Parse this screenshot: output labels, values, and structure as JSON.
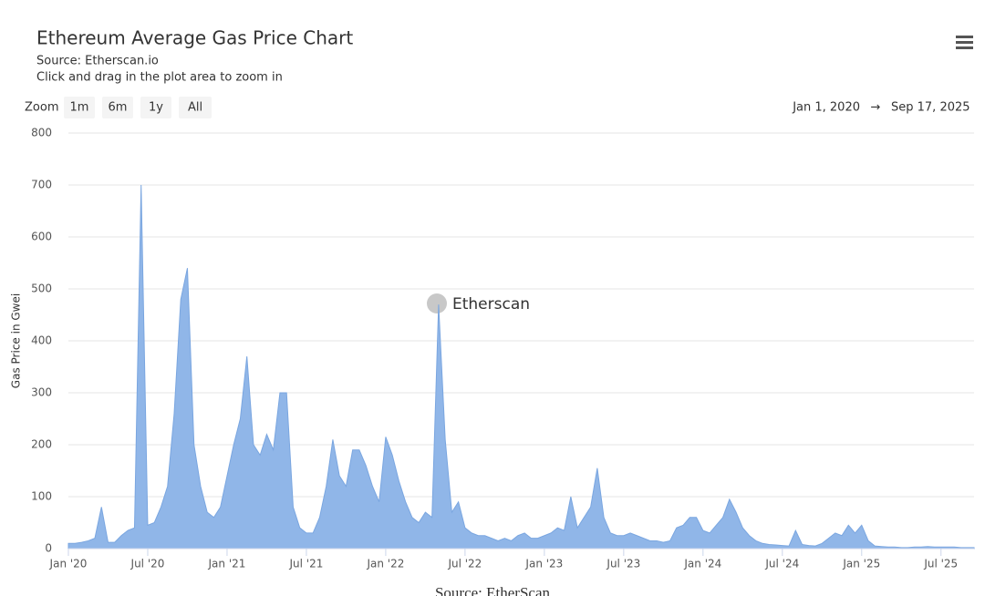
{
  "chart_data": {
    "type": "area",
    "title": "Ethereum Average Gas Price Chart",
    "subtitle": [
      "Source: Etherscan.io",
      "Click and drag in the plot area to zoom in"
    ],
    "range_selector": {
      "label": "Zoom",
      "buttons": [
        "1m",
        "6m",
        "1y",
        "All"
      ]
    },
    "date_range": {
      "from": "Jan 1, 2020",
      "arrow": "→",
      "to": "Sep 17, 2025"
    },
    "y_label": "Gas Price in Gwei",
    "watermark": "Etherscan",
    "caption": "Source: EtherScan",
    "color": "#90b6e8",
    "categories": [
      "Jan '20",
      null,
      null,
      null,
      null,
      null,
      null,
      null,
      null,
      null,
      null,
      null,
      "Jul '20",
      null,
      null,
      null,
      null,
      null,
      null,
      null,
      null,
      null,
      null,
      null,
      "Jan '21",
      null,
      null,
      null,
      null,
      null,
      null,
      null,
      null,
      null,
      null,
      null,
      "Jul '21",
      null,
      null,
      null,
      null,
      null,
      null,
      null,
      null,
      null,
      null,
      null,
      "Jan '22",
      null,
      null,
      null,
      null,
      null,
      null,
      null,
      null,
      null,
      null,
      null,
      "Jul '22",
      null,
      null,
      null,
      null,
      null,
      null,
      null,
      null,
      null,
      null,
      null,
      "Jan '23",
      null,
      null,
      null,
      null,
      null,
      null,
      null,
      null,
      null,
      null,
      null,
      "Jul '23",
      null,
      null,
      null,
      null,
      null,
      null,
      null,
      null,
      null,
      null,
      null,
      "Jan '24",
      null,
      null,
      null,
      null,
      null,
      null,
      null,
      null,
      null,
      null,
      null,
      "Jul '24",
      null,
      null,
      null,
      null,
      null,
      null,
      null,
      null,
      null,
      null,
      null,
      "Jan '25",
      null,
      null,
      null,
      null,
      null,
      null,
      null,
      null,
      null,
      null,
      null,
      "Jul '25",
      null,
      null,
      null,
      null,
      null
    ],
    "values": [
      10,
      10,
      12,
      15,
      20,
      80,
      12,
      12,
      25,
      35,
      40,
      700,
      45,
      50,
      80,
      120,
      260,
      480,
      540,
      200,
      120,
      70,
      60,
      80,
      140,
      200,
      250,
      370,
      200,
      180,
      220,
      190,
      300,
      300,
      80,
      40,
      30,
      30,
      60,
      120,
      210,
      140,
      120,
      190,
      190,
      160,
      120,
      90,
      215,
      180,
      130,
      90,
      60,
      50,
      70,
      60,
      470,
      210,
      70,
      90,
      40,
      30,
      25,
      25,
      20,
      15,
      20,
      15,
      25,
      30,
      20,
      20,
      25,
      30,
      40,
      35,
      100,
      40,
      60,
      80,
      155,
      60,
      30,
      25,
      25,
      30,
      25,
      20,
      15,
      15,
      12,
      15,
      40,
      45,
      60,
      60,
      35,
      30,
      45,
      60,
      95,
      70,
      40,
      25,
      15,
      10,
      8,
      7,
      6,
      5,
      35,
      8,
      6,
      5,
      10,
      20,
      30,
      25,
      45,
      30,
      45,
      15,
      5,
      4,
      3,
      3,
      2,
      2,
      3,
      3,
      4,
      3,
      3,
      3,
      3,
      2,
      2,
      2
    ],
    "ylim": [
      0,
      800
    ],
    "yticks": [
      0,
      100,
      200,
      300,
      400,
      500,
      600,
      700,
      800
    ],
    "grid": true
  }
}
